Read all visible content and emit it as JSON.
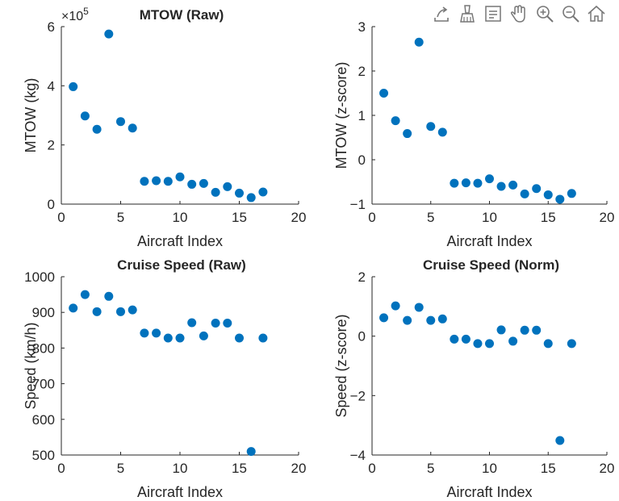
{
  "toolbar": {
    "icons": [
      "export-icon",
      "brush-icon",
      "datatip-icon",
      "pan-hand-icon",
      "zoom-in-icon",
      "zoom-out-icon",
      "home-icon"
    ]
  },
  "colors": {
    "marker": "#0072BD",
    "axis": "#262626",
    "text": "#262626"
  },
  "chart_data": [
    {
      "type": "scatter",
      "title": "MTOW (Raw)",
      "xlabel": "Aircraft Index",
      "ylabel": "MTOW (kg)",
      "xlim": [
        0,
        20
      ],
      "ylim": [
        0,
        600000
      ],
      "xticks": [
        0,
        5,
        10,
        15,
        20
      ],
      "yticks": [
        0,
        2,
        4,
        6
      ],
      "exponent_label": "×10",
      "exponent_power": "5",
      "x": [
        1,
        2,
        3,
        4,
        5,
        6,
        7,
        8,
        9,
        10,
        11,
        12,
        13,
        14,
        15,
        16,
        17
      ],
      "y": [
        397000,
        298000,
        253000,
        575000,
        279000,
        257000,
        77000,
        79000,
        77000,
        92000,
        67000,
        70000,
        40000,
        59000,
        37000,
        22000,
        41000
      ]
    },
    {
      "type": "scatter",
      "title": "",
      "xlabel": "Aircraft Index",
      "ylabel": "MTOW (z-score)",
      "xlim": [
        0,
        20
      ],
      "ylim": [
        -1,
        3
      ],
      "xticks": [
        0,
        5,
        10,
        15,
        20
      ],
      "yticks": [
        -1,
        0,
        1,
        2,
        3
      ],
      "x": [
        1,
        2,
        3,
        4,
        5,
        6,
        7,
        8,
        9,
        10,
        11,
        12,
        13,
        14,
        15,
        16,
        17
      ],
      "y": [
        1.5,
        0.88,
        0.59,
        2.65,
        0.75,
        0.62,
        -0.53,
        -0.52,
        -0.53,
        -0.43,
        -0.6,
        -0.57,
        -0.77,
        -0.65,
        -0.79,
        -0.89,
        -0.76
      ]
    },
    {
      "type": "scatter",
      "title": "Cruise Speed (Raw)",
      "xlabel": "Aircraft Index",
      "ylabel": "Speed (km/h)",
      "xlim": [
        0,
        20
      ],
      "ylim": [
        500,
        1000
      ],
      "xticks": [
        0,
        5,
        10,
        15,
        20
      ],
      "yticks": [
        500,
        600,
        700,
        800,
        900,
        1000
      ],
      "x": [
        1,
        2,
        3,
        4,
        5,
        6,
        7,
        8,
        9,
        10,
        11,
        12,
        13,
        14,
        15,
        16,
        17
      ],
      "y": [
        912,
        950,
        902,
        945,
        902,
        907,
        842,
        842,
        828,
        828,
        871,
        834,
        870,
        870,
        828,
        510,
        828
      ]
    },
    {
      "type": "scatter",
      "title": "Cruise Speed (Norm)",
      "xlabel": "Aircraft Index",
      "ylabel": "Speed (z-score)",
      "xlim": [
        0,
        20
      ],
      "ylim": [
        -4,
        2
      ],
      "xticks": [
        0,
        5,
        10,
        15,
        20
      ],
      "yticks": [
        -4,
        -2,
        0,
        2
      ],
      "x": [
        1,
        2,
        3,
        4,
        5,
        6,
        7,
        8,
        9,
        10,
        11,
        12,
        13,
        14,
        15,
        16,
        17
      ],
      "y": [
        0.62,
        1.02,
        0.53,
        0.97,
        0.53,
        0.58,
        -0.1,
        -0.1,
        -0.25,
        -0.25,
        0.21,
        -0.17,
        0.2,
        0.2,
        -0.25,
        -3.51,
        -0.25
      ]
    }
  ]
}
